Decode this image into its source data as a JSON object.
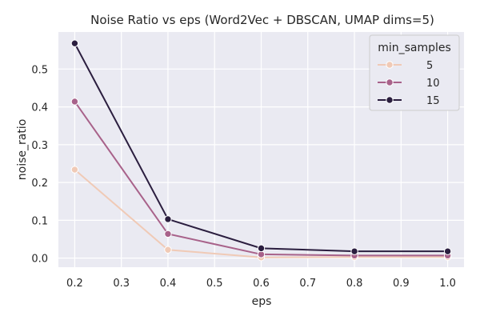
{
  "chart_data": {
    "type": "line",
    "title": "Noise Ratio vs eps (Word2Vec + DBSCAN, UMAP dims=5)",
    "xlabel": "eps",
    "ylabel": "noise_ratio",
    "x": [
      0.2,
      0.4,
      0.6,
      0.8,
      1.0
    ],
    "xlim": [
      0.165,
      1.035
    ],
    "ylim": [
      -0.024,
      0.598
    ],
    "xticks": [
      "0.2",
      "0.3",
      "0.4",
      "0.5",
      "0.6",
      "0.7",
      "0.8",
      "0.9",
      "1.0"
    ],
    "yticks": [
      "0.0",
      "0.1",
      "0.2",
      "0.3",
      "0.4",
      "0.5"
    ],
    "grid": true,
    "legend": {
      "title": "min_samples",
      "placement": "top-right"
    },
    "series": [
      {
        "name": "5",
        "color": "#f0cab6",
        "values": [
          0.234,
          0.022,
          0.002,
          0.003,
          0.003
        ]
      },
      {
        "name": "10",
        "color": "#a8628a",
        "values": [
          0.414,
          0.064,
          0.01,
          0.007,
          0.007
        ]
      },
      {
        "name": "15",
        "color": "#2b1e3f",
        "values": [
          0.568,
          0.103,
          0.026,
          0.018,
          0.018
        ]
      }
    ]
  }
}
